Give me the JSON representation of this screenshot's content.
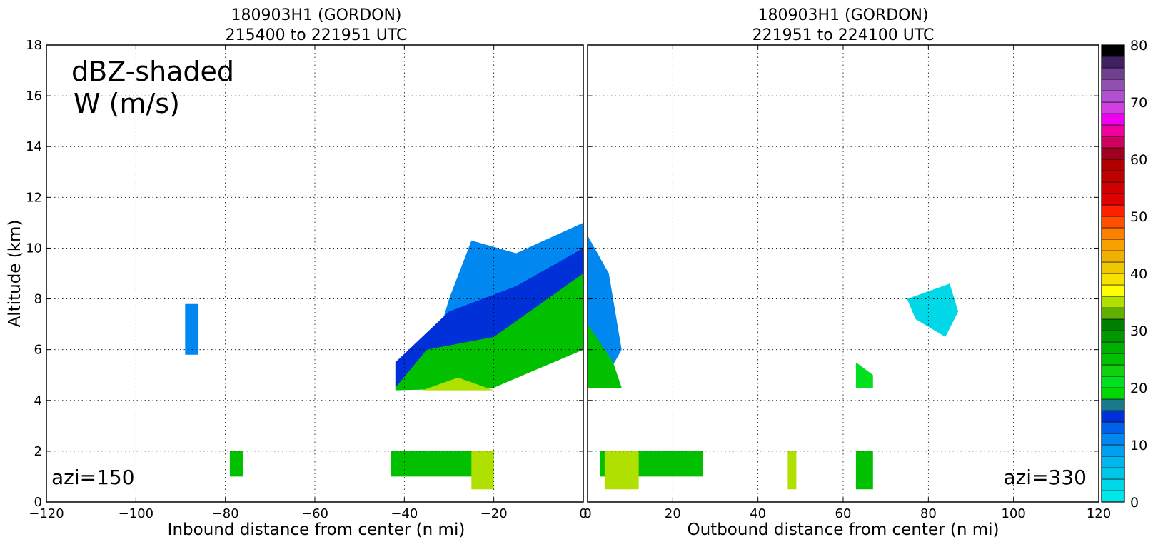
{
  "chart_data": [
    {
      "type": "heatmap",
      "title_line1": "180903H1 (GORDON)",
      "title_line2": "215400 to 221951 UTC",
      "xlabel": "Inbound distance from center (n mi)",
      "ylabel": "Altitude (km)",
      "xlim": [
        -120,
        0
      ],
      "ylim": [
        0,
        18
      ],
      "xticks": [
        -120,
        -100,
        -80,
        -60,
        -40,
        -20,
        0
      ],
      "yticks": [
        0,
        2,
        4,
        6,
        8,
        10,
        12,
        14,
        16,
        18
      ],
      "grid": true,
      "annotations": [
        "dBZ-shaded",
        "W (m/s)",
        "azi=150"
      ],
      "regions": [
        {
          "dbz": 10,
          "points": [
            [
              -30,
              8
            ],
            [
              -25,
              10.3
            ],
            [
              -15,
              9.8
            ],
            [
              0,
              11
            ],
            [
              0,
              8
            ],
            [
              -20,
              6
            ],
            [
              -35,
              5
            ]
          ]
        },
        {
          "dbz": 15,
          "points": [
            [
              -42,
              5.5
            ],
            [
              -30,
              7.5
            ],
            [
              -15,
              8.5
            ],
            [
              0,
              10
            ],
            [
              0,
              7
            ],
            [
              -20,
              5.5
            ],
            [
              -42,
              4.5
            ]
          ]
        },
        {
          "dbz": 25,
          "points": [
            [
              -42,
              4.5
            ],
            [
              -35,
              6
            ],
            [
              -20,
              6.5
            ],
            [
              0,
              9
            ],
            [
              0,
              6
            ],
            [
              -20,
              4.5
            ],
            [
              -42,
              4.4
            ]
          ]
        },
        {
          "dbz": 35,
          "points": [
            [
              -36,
              4.4
            ],
            [
              -28,
              4.9
            ],
            [
              -20,
              4.4
            ]
          ]
        },
        {
          "dbz": 25,
          "points": [
            [
              -43,
              2
            ],
            [
              -20,
              2
            ],
            [
              -20,
              1
            ],
            [
              -43,
              1
            ]
          ]
        },
        {
          "dbz": 35,
          "points": [
            [
              -25,
              2
            ],
            [
              -20,
              2
            ],
            [
              -20,
              0.5
            ],
            [
              -25,
              0.5
            ]
          ]
        },
        {
          "dbz": 10,
          "points": [
            [
              -89,
              7.8
            ],
            [
              -86,
              7.8
            ],
            [
              -86,
              5.8
            ],
            [
              -89,
              5.8
            ]
          ]
        },
        {
          "dbz": 25,
          "points": [
            [
              -79,
              2
            ],
            [
              -76,
              2
            ],
            [
              -76,
              1
            ],
            [
              -79,
              1
            ]
          ]
        }
      ]
    },
    {
      "type": "heatmap",
      "title_line1": "180903H1 (GORDON)",
      "title_line2": "221951 to 224100 UTC",
      "xlabel": "Outbound distance from center (n mi)",
      "ylabel": "",
      "xlim": [
        0,
        120
      ],
      "ylim": [
        0,
        18
      ],
      "xticks": [
        0,
        20,
        40,
        60,
        80,
        100,
        120
      ],
      "yticks": [
        0,
        2,
        4,
        6,
        8,
        10,
        12,
        14,
        16,
        18
      ],
      "grid": true,
      "annotations": [
        "azi=330"
      ],
      "regions": [
        {
          "dbz": 10,
          "points": [
            [
              0,
              10.5
            ],
            [
              5,
              9
            ],
            [
              8,
              6
            ],
            [
              3,
              4.5
            ],
            [
              0,
              4.5
            ]
          ]
        },
        {
          "dbz": 25,
          "points": [
            [
              0,
              7
            ],
            [
              6,
              5.5
            ],
            [
              8,
              4.5
            ],
            [
              0,
              4.5
            ]
          ]
        },
        {
          "dbz": 25,
          "points": [
            [
              3,
              2
            ],
            [
              27,
              2
            ],
            [
              27,
              1
            ],
            [
              3,
              1
            ]
          ]
        },
        {
          "dbz": 35,
          "points": [
            [
              4,
              2
            ],
            [
              12,
              2
            ],
            [
              12,
              0.5
            ],
            [
              4,
              0.5
            ]
          ]
        },
        {
          "dbz": 3,
          "points": [
            [
              75,
              8
            ],
            [
              85,
              8.6
            ],
            [
              87,
              7.5
            ],
            [
              84,
              6.5
            ],
            [
              77,
              7.2
            ]
          ]
        },
        {
          "dbz": 25,
          "points": [
            [
              63,
              2
            ],
            [
              67,
              2
            ],
            [
              67,
              0.5
            ],
            [
              63,
              0.5
            ]
          ]
        },
        {
          "dbz": 35,
          "points": [
            [
              47,
              2
            ],
            [
              49,
              2
            ],
            [
              49,
              0.5
            ],
            [
              47,
              0.5
            ]
          ]
        },
        {
          "dbz": 20,
          "points": [
            [
              63,
              5.5
            ],
            [
              67,
              5
            ],
            [
              67,
              4.5
            ],
            [
              63,
              4.5
            ]
          ]
        }
      ]
    }
  ],
  "colorbar": {
    "label_values": [
      "80",
      "70",
      "60",
      "50",
      "40",
      "30",
      "20",
      "10",
      "0"
    ],
    "min": 0,
    "max": 80,
    "colors": [
      "#00e7e7",
      "#00d7e7",
      "#00c7e7",
      "#00b7ee",
      "#00a0f0",
      "#0088f0",
      "#0060ea",
      "#0030d8",
      "#1a7a8a",
      "#00d800",
      "#00e020",
      "#10d010",
      "#00c000",
      "#00b000",
      "#009900",
      "#008000",
      "#60b000",
      "#b0e000",
      "#ffff00",
      "#f8e000",
      "#f0c800",
      "#f0b000",
      "#f8a000",
      "#ff8000",
      "#ff5000",
      "#ff2000",
      "#e00000",
      "#d00000",
      "#c00000",
      "#b00000",
      "#a00020",
      "#d00060",
      "#f000a0",
      "#f000f0",
      "#d040e0",
      "#b050d0",
      "#9050b0",
      "#704090",
      "#402060",
      "#000000"
    ]
  }
}
